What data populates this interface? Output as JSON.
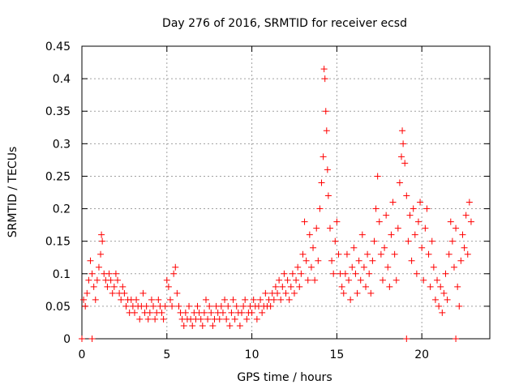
{
  "chart_data": {
    "type": "scatter",
    "title": "Day 276 of 2016, SRMTID for receiver ecsd",
    "xlabel": "GPS time / hours",
    "ylabel": "SRMTID / TECUs",
    "xlim": [
      0,
      24
    ],
    "ylim": [
      0,
      0.45
    ],
    "xticks": [
      0,
      5,
      10,
      15,
      20
    ],
    "xtick_labels": [
      "0",
      "5",
      "10",
      "15",
      "20"
    ],
    "yticks": [
      0,
      0.05,
      0.1,
      0.15,
      0.2,
      0.25,
      0.3,
      0.35,
      0.4,
      0.45
    ],
    "ytick_labels": [
      "0",
      "0.05",
      "0.1",
      "0.15",
      "0.2",
      "0.25",
      "0.3",
      "0.35",
      "0.4",
      "0.45"
    ],
    "grid": true,
    "marker": "plus",
    "marker_color": "#ff0000",
    "series": [
      {
        "name": "SRMTID",
        "color": "#ff0000",
        "points": [
          [
            0.0,
            0.0
          ],
          [
            0.6,
            0.0
          ],
          [
            19.1,
            0.0
          ],
          [
            22.0,
            0.0
          ],
          [
            0.1,
            0.06
          ],
          [
            0.2,
            0.05
          ],
          [
            0.3,
            0.07
          ],
          [
            0.4,
            0.09
          ],
          [
            0.5,
            0.12
          ],
          [
            0.6,
            0.1
          ],
          [
            0.7,
            0.08
          ],
          [
            0.8,
            0.06
          ],
          [
            0.9,
            0.09
          ],
          [
            1.0,
            0.11
          ],
          [
            1.1,
            0.13
          ],
          [
            1.15,
            0.16
          ],
          [
            1.2,
            0.15
          ],
          [
            1.3,
            0.1
          ],
          [
            1.4,
            0.09
          ],
          [
            1.5,
            0.08
          ],
          [
            1.6,
            0.1
          ],
          [
            1.7,
            0.09
          ],
          [
            1.8,
            0.07
          ],
          [
            1.9,
            0.08
          ],
          [
            2.0,
            0.1
          ],
          [
            2.1,
            0.09
          ],
          [
            2.2,
            0.07
          ],
          [
            2.3,
            0.06
          ],
          [
            2.4,
            0.08
          ],
          [
            2.5,
            0.07
          ],
          [
            2.6,
            0.05
          ],
          [
            2.7,
            0.06
          ],
          [
            2.8,
            0.04
          ],
          [
            2.9,
            0.06
          ],
          [
            3.0,
            0.05
          ],
          [
            3.1,
            0.04
          ],
          [
            3.2,
            0.06
          ],
          [
            3.3,
            0.05
          ],
          [
            3.4,
            0.03
          ],
          [
            3.5,
            0.05
          ],
          [
            3.6,
            0.07
          ],
          [
            3.7,
            0.04
          ],
          [
            3.8,
            0.05
          ],
          [
            3.9,
            0.03
          ],
          [
            4.0,
            0.04
          ],
          [
            4.1,
            0.06
          ],
          [
            4.2,
            0.05
          ],
          [
            4.3,
            0.03
          ],
          [
            4.4,
            0.04
          ],
          [
            4.5,
            0.06
          ],
          [
            4.6,
            0.05
          ],
          [
            4.7,
            0.04
          ],
          [
            4.8,
            0.03
          ],
          [
            4.9,
            0.05
          ],
          [
            5.0,
            0.09
          ],
          [
            5.1,
            0.08
          ],
          [
            5.2,
            0.06
          ],
          [
            5.3,
            0.05
          ],
          [
            5.4,
            0.1
          ],
          [
            5.5,
            0.11
          ],
          [
            5.6,
            0.07
          ],
          [
            5.7,
            0.05
          ],
          [
            5.8,
            0.04
          ],
          [
            5.9,
            0.03
          ],
          [
            6.0,
            0.02
          ],
          [
            6.1,
            0.04
          ],
          [
            6.2,
            0.03
          ],
          [
            6.3,
            0.05
          ],
          [
            6.4,
            0.03
          ],
          [
            6.5,
            0.02
          ],
          [
            6.6,
            0.04
          ],
          [
            6.7,
            0.03
          ],
          [
            6.8,
            0.05
          ],
          [
            6.9,
            0.04
          ],
          [
            7.0,
            0.03
          ],
          [
            7.1,
            0.02
          ],
          [
            7.2,
            0.04
          ],
          [
            7.3,
            0.06
          ],
          [
            7.4,
            0.03
          ],
          [
            7.5,
            0.05
          ],
          [
            7.6,
            0.04
          ],
          [
            7.7,
            0.02
          ],
          [
            7.8,
            0.03
          ],
          [
            7.9,
            0.05
          ],
          [
            8.0,
            0.04
          ],
          [
            8.1,
            0.03
          ],
          [
            8.2,
            0.05
          ],
          [
            8.3,
            0.04
          ],
          [
            8.4,
            0.06
          ],
          [
            8.5,
            0.03
          ],
          [
            8.6,
            0.05
          ],
          [
            8.7,
            0.02
          ],
          [
            8.8,
            0.04
          ],
          [
            8.9,
            0.06
          ],
          [
            9.0,
            0.03
          ],
          [
            9.1,
            0.05
          ],
          [
            9.2,
            0.04
          ],
          [
            9.3,
            0.02
          ],
          [
            9.4,
            0.04
          ],
          [
            9.5,
            0.05
          ],
          [
            9.6,
            0.06
          ],
          [
            9.7,
            0.03
          ],
          [
            9.8,
            0.04
          ],
          [
            9.9,
            0.05
          ],
          [
            10.0,
            0.04
          ],
          [
            10.1,
            0.06
          ],
          [
            10.2,
            0.05
          ],
          [
            10.3,
            0.03
          ],
          [
            10.4,
            0.05
          ],
          [
            10.5,
            0.06
          ],
          [
            10.6,
            0.04
          ],
          [
            10.7,
            0.05
          ],
          [
            10.8,
            0.07
          ],
          [
            10.9,
            0.05
          ],
          [
            11.0,
            0.06
          ],
          [
            11.1,
            0.05
          ],
          [
            11.2,
            0.07
          ],
          [
            11.3,
            0.06
          ],
          [
            11.4,
            0.08
          ],
          [
            11.5,
            0.07
          ],
          [
            11.6,
            0.09
          ],
          [
            11.7,
            0.06
          ],
          [
            11.8,
            0.08
          ],
          [
            11.9,
            0.1
          ],
          [
            12.0,
            0.07
          ],
          [
            12.1,
            0.09
          ],
          [
            12.2,
            0.06
          ],
          [
            12.3,
            0.08
          ],
          [
            12.4,
            0.1
          ],
          [
            12.5,
            0.07
          ],
          [
            12.6,
            0.09
          ],
          [
            12.7,
            0.11
          ],
          [
            12.8,
            0.08
          ],
          [
            12.9,
            0.1
          ],
          [
            13.0,
            0.13
          ],
          [
            13.1,
            0.18
          ],
          [
            13.2,
            0.12
          ],
          [
            13.3,
            0.09
          ],
          [
            13.4,
            0.16
          ],
          [
            13.5,
            0.11
          ],
          [
            13.6,
            0.14
          ],
          [
            13.7,
            0.09
          ],
          [
            13.8,
            0.17
          ],
          [
            13.9,
            0.12
          ],
          [
            14.0,
            0.2
          ],
          [
            14.1,
            0.24
          ],
          [
            14.2,
            0.28
          ],
          [
            14.25,
            0.415
          ],
          [
            14.3,
            0.4
          ],
          [
            14.35,
            0.35
          ],
          [
            14.4,
            0.32
          ],
          [
            14.45,
            0.26
          ],
          [
            14.5,
            0.22
          ],
          [
            14.6,
            0.17
          ],
          [
            14.7,
            0.12
          ],
          [
            14.8,
            0.1
          ],
          [
            14.9,
            0.15
          ],
          [
            15.0,
            0.18
          ],
          [
            15.1,
            0.13
          ],
          [
            15.2,
            0.1
          ],
          [
            15.3,
            0.08
          ],
          [
            15.4,
            0.07
          ],
          [
            15.5,
            0.1
          ],
          [
            15.6,
            0.13
          ],
          [
            15.7,
            0.09
          ],
          [
            15.8,
            0.06
          ],
          [
            15.9,
            0.11
          ],
          [
            16.0,
            0.14
          ],
          [
            16.1,
            0.1
          ],
          [
            16.2,
            0.07
          ],
          [
            16.3,
            0.12
          ],
          [
            16.4,
            0.09
          ],
          [
            16.5,
            0.16
          ],
          [
            16.6,
            0.11
          ],
          [
            16.7,
            0.08
          ],
          [
            16.8,
            0.13
          ],
          [
            16.9,
            0.1
          ],
          [
            17.0,
            0.07
          ],
          [
            17.1,
            0.12
          ],
          [
            17.2,
            0.15
          ],
          [
            17.3,
            0.2
          ],
          [
            17.4,
            0.25
          ],
          [
            17.5,
            0.18
          ],
          [
            17.6,
            0.13
          ],
          [
            17.7,
            0.09
          ],
          [
            17.8,
            0.14
          ],
          [
            17.9,
            0.19
          ],
          [
            18.0,
            0.11
          ],
          [
            18.1,
            0.08
          ],
          [
            18.2,
            0.16
          ],
          [
            18.3,
            0.21
          ],
          [
            18.4,
            0.13
          ],
          [
            18.5,
            0.09
          ],
          [
            18.6,
            0.17
          ],
          [
            18.7,
            0.24
          ],
          [
            18.8,
            0.28
          ],
          [
            18.85,
            0.32
          ],
          [
            18.9,
            0.3
          ],
          [
            19.0,
            0.27
          ],
          [
            19.1,
            0.22
          ],
          [
            19.2,
            0.15
          ],
          [
            19.3,
            0.19
          ],
          [
            19.4,
            0.12
          ],
          [
            19.5,
            0.2
          ],
          [
            19.6,
            0.16
          ],
          [
            19.7,
            0.1
          ],
          [
            19.8,
            0.18
          ],
          [
            19.9,
            0.21
          ],
          [
            20.0,
            0.14
          ],
          [
            20.1,
            0.09
          ],
          [
            20.2,
            0.17
          ],
          [
            20.3,
            0.2
          ],
          [
            20.4,
            0.13
          ],
          [
            20.5,
            0.08
          ],
          [
            20.6,
            0.15
          ],
          [
            20.7,
            0.11
          ],
          [
            20.8,
            0.06
          ],
          [
            20.9,
            0.09
          ],
          [
            21.0,
            0.05
          ],
          [
            21.1,
            0.08
          ],
          [
            21.2,
            0.04
          ],
          [
            21.3,
            0.07
          ],
          [
            21.4,
            0.1
          ],
          [
            21.5,
            0.06
          ],
          [
            21.6,
            0.13
          ],
          [
            21.7,
            0.18
          ],
          [
            21.8,
            0.15
          ],
          [
            21.9,
            0.11
          ],
          [
            22.0,
            0.17
          ],
          [
            22.1,
            0.08
          ],
          [
            22.2,
            0.05
          ],
          [
            22.3,
            0.12
          ],
          [
            22.4,
            0.16
          ],
          [
            22.5,
            0.14
          ],
          [
            22.6,
            0.19
          ],
          [
            22.7,
            0.13
          ],
          [
            22.8,
            0.21
          ],
          [
            22.9,
            0.18
          ]
        ]
      }
    ]
  }
}
